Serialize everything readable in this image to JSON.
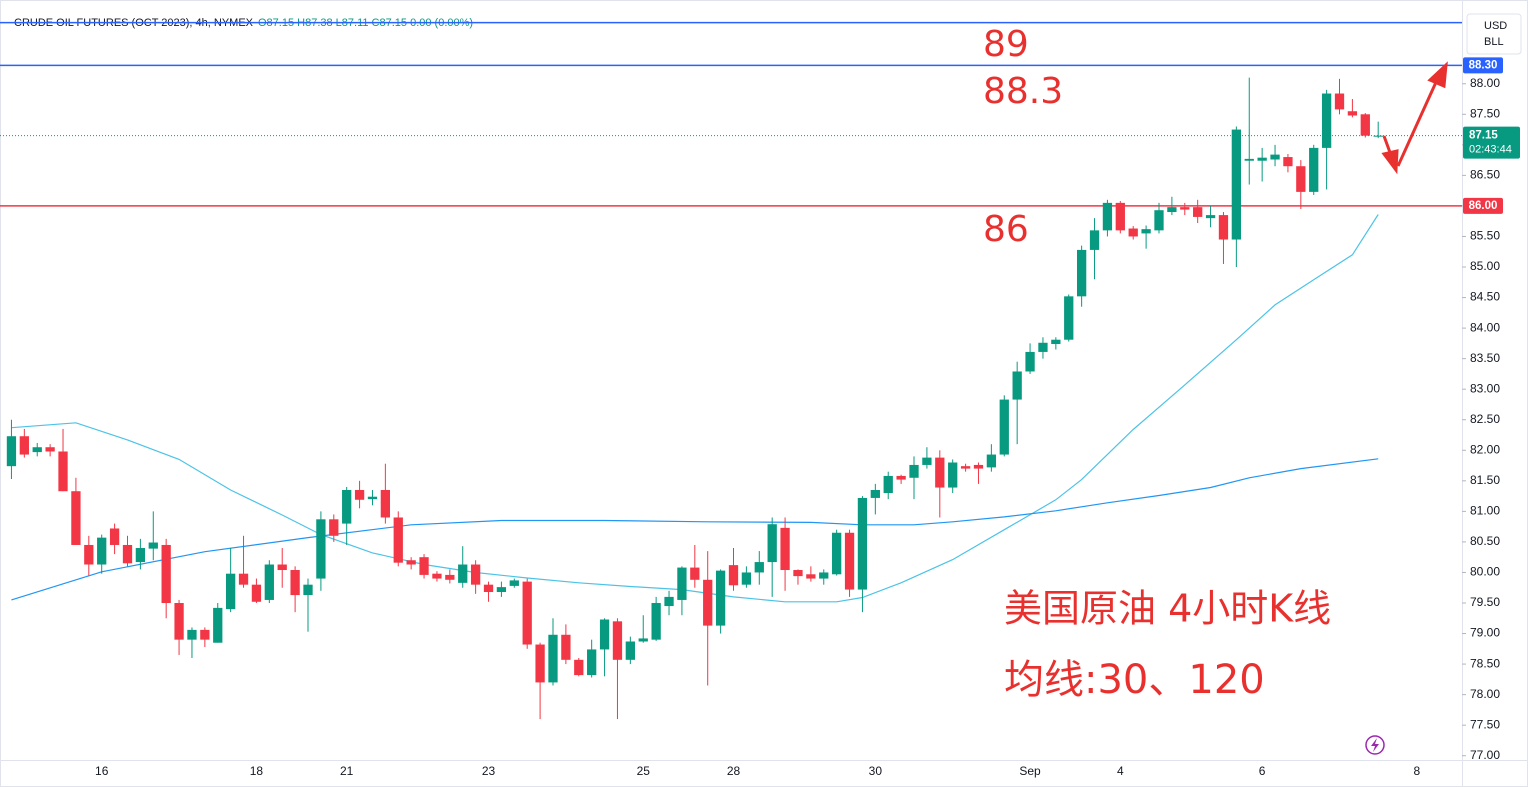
{
  "chart_data": {
    "type": "candlestick",
    "title": "CRUDE OIL FUTURES (OCT 2023), 4h, NYMEX",
    "subtitle": "O87.15 H87.38 L87.11 C87.15 0.00 (0.00%)",
    "currency": [
      "USD",
      "BLL"
    ],
    "up_color": "#089981",
    "down_color": "#f23645",
    "ylim": [
      76.93,
      89.24
    ],
    "yticks": [
      {
        "value": 77,
        "label": "77.00"
      },
      {
        "value": 77.5,
        "label": "77.50"
      },
      {
        "value": 78,
        "label": "78.00"
      },
      {
        "value": 78.5,
        "label": "78.50"
      },
      {
        "value": 79,
        "label": "79.00"
      },
      {
        "value": 79.5,
        "label": "79.50"
      },
      {
        "value": 80,
        "label": "80.00"
      },
      {
        "value": 80.5,
        "label": "80.50"
      },
      {
        "value": 81,
        "label": "81.00"
      },
      {
        "value": 81.5,
        "label": "81.50"
      },
      {
        "value": 82,
        "label": "82.00"
      },
      {
        "value": 82.5,
        "label": "82.50"
      },
      {
        "value": 83,
        "label": "83.00"
      },
      {
        "value": 83.5,
        "label": "83.50"
      },
      {
        "value": 84,
        "label": "84.00"
      },
      {
        "value": 84.5,
        "label": "84.50"
      },
      {
        "value": 85,
        "label": "85.00"
      },
      {
        "value": 85.5,
        "label": "85.50"
      },
      {
        "value": 86,
        "label": "86.00"
      },
      {
        "value": 86.5,
        "label": "86.50"
      },
      {
        "value": 87,
        "label": "87.00"
      },
      {
        "value": 87.5,
        "label": "87.50"
      },
      {
        "value": 88,
        "label": "88.00"
      }
    ],
    "categories": [
      null,
      null,
      null,
      null,
      null,
      null,
      null,
      "16",
      null,
      null,
      null,
      null,
      null,
      null,
      null,
      null,
      null,
      null,
      null,
      "18",
      null,
      null,
      null,
      null,
      null,
      null,
      "21",
      null,
      null,
      null,
      null,
      null,
      null,
      null,
      null,
      null,
      null,
      "23",
      null,
      null,
      null,
      null,
      null,
      null,
      null,
      null,
      null,
      null,
      null,
      "25",
      null,
      null,
      null,
      null,
      null,
      null,
      "28",
      null,
      null,
      null,
      null,
      null,
      null,
      null,
      null,
      null,
      null,
      "30",
      null,
      null,
      null,
      null,
      null,
      null,
      null,
      null,
      null,
      null,
      null,
      "Sep",
      null,
      null,
      null,
      null,
      null,
      null,
      "4",
      null,
      null,
      null,
      null,
      null,
      null,
      null,
      null,
      null,
      null,
      "6",
      null,
      null,
      null,
      null,
      null,
      null,
      null,
      null,
      null,
      null,
      null,
      "8",
      null,
      null,
      null
    ],
    "open": [
      81.74,
      82.23,
      81.97,
      82.05,
      81.98,
      81.33,
      80.45,
      80.13,
      80.72,
      80.45,
      80.17,
      80.39,
      80.45,
      79.5,
      78.9,
      79.06,
      78.85,
      79.4,
      79.98,
      79.8,
      79.55,
      80.13,
      80.04,
      79.63,
      79.9,
      80.87,
      80.8,
      81.35,
      81.2,
      81.35,
      80.9,
      80.2,
      80.25,
      79.98,
      79.96,
      79.83,
      80.13,
      79.8,
      79.68,
      79.78,
      79.85,
      78.82,
      78.2,
      78.98,
      78.57,
      78.32,
      78.74,
      79.2,
      78.57,
      78.87,
      78.9,
      79.45,
      79.55,
      80.08,
      79.88,
      79.13,
      80.12,
      79.8,
      80.0,
      80.17,
      80.73,
      80.04,
      79.97,
      79.9,
      79.97,
      80.65,
      79.72,
      81.22,
      81.3,
      81.58,
      81.55,
      81.76,
      81.88,
      81.39,
      81.74,
      81.76,
      81.72,
      81.93,
      82.83,
      83.29,
      83.61,
      83.74,
      83.81,
      84.52,
      85.28,
      85.6,
      86.05,
      85.63,
      85.55,
      85.6,
      85.9,
      85.98,
      85.98,
      85.8,
      85.85,
      85.45,
      86.74,
      86.74,
      86.76,
      86.8,
      86.65,
      86.23,
      86.95,
      87.84,
      87.55,
      87.5,
      87.15,
      null,
      null,
      null,
      null,
      null,
      null
    ],
    "high": [
      82.5,
      82.35,
      82.12,
      82.1,
      82.35,
      81.55,
      80.6,
      80.62,
      80.8,
      80.6,
      80.55,
      81.0,
      80.55,
      79.55,
      79.1,
      79.1,
      79.5,
      80.4,
      80.6,
      79.9,
      80.2,
      80.4,
      80.1,
      79.9,
      81.0,
      80.95,
      81.4,
      81.5,
      81.35,
      81.78,
      81.0,
      80.25,
      80.3,
      80.02,
      80.05,
      80.43,
      80.2,
      79.85,
      79.85,
      79.9,
      79.9,
      78.85,
      79.25,
      79.15,
      78.6,
      78.9,
      79.25,
      79.25,
      78.95,
      79.3,
      79.6,
      79.7,
      80.1,
      80.45,
      80.35,
      80.05,
      80.4,
      80.1,
      80.35,
      80.9,
      80.9,
      80.05,
      80.1,
      80.05,
      80.7,
      80.7,
      81.25,
      81.45,
      81.65,
      81.6,
      81.9,
      82.05,
      82.0,
      81.85,
      81.78,
      81.8,
      82.1,
      82.9,
      83.45,
      83.75,
      83.85,
      83.85,
      84.55,
      85.35,
      85.8,
      86.1,
      86.08,
      85.67,
      85.68,
      86.05,
      86.15,
      86.05,
      86.1,
      86.0,
      85.9,
      87.3,
      88.1,
      86.95,
      87.0,
      86.85,
      86.75,
      87.0,
      87.9,
      88.08,
      87.75,
      87.52,
      87.38,
      null,
      null,
      null,
      null,
      null,
      null
    ],
    "low": [
      81.53,
      81.88,
      81.9,
      81.9,
      81.33,
      80.45,
      79.95,
      79.98,
      80.3,
      80.1,
      80.05,
      80.2,
      79.25,
      78.65,
      78.6,
      78.78,
      78.85,
      79.35,
      79.75,
      79.5,
      79.5,
      79.75,
      79.35,
      79.03,
      79.7,
      80.5,
      80.45,
      81.05,
      81.1,
      80.8,
      80.1,
      80.05,
      79.9,
      79.85,
      79.82,
      79.75,
      79.65,
      79.52,
      79.6,
      79.75,
      78.75,
      77.6,
      78.15,
      78.5,
      78.3,
      78.28,
      78.3,
      77.6,
      78.5,
      78.85,
      78.88,
      79.3,
      79.3,
      79.75,
      78.15,
      79.0,
      79.7,
      79.75,
      79.8,
      79.6,
      79.7,
      79.8,
      79.85,
      79.8,
      79.95,
      79.6,
      79.35,
      80.95,
      81.2,
      81.45,
      81.2,
      81.7,
      80.9,
      81.3,
      81.65,
      81.45,
      81.65,
      81.9,
      82.1,
      83.25,
      83.5,
      83.65,
      83.78,
      84.35,
      84.8,
      85.5,
      85.55,
      85.45,
      85.3,
      85.55,
      85.85,
      85.85,
      85.72,
      85.65,
      85.05,
      85.0,
      86.35,
      86.4,
      86.65,
      86.55,
      85.95,
      86.18,
      86.27,
      87.5,
      87.45,
      87.12,
      87.11,
      null,
      null,
      null,
      null,
      null,
      null
    ],
    "close": [
      82.23,
      81.93,
      82.05,
      81.98,
      81.33,
      80.45,
      80.13,
      80.57,
      80.45,
      80.15,
      80.4,
      80.49,
      79.5,
      78.9,
      79.06,
      78.9,
      79.42,
      79.98,
      79.8,
      79.52,
      80.13,
      80.04,
      79.63,
      79.8,
      80.87,
      80.6,
      81.35,
      81.19,
      81.24,
      80.9,
      80.16,
      80.13,
      79.96,
      79.9,
      79.88,
      80.13,
      79.8,
      79.68,
      79.76,
      79.87,
      78.82,
      78.2,
      78.98,
      78.57,
      78.32,
      78.74,
      79.23,
      78.57,
      78.87,
      78.92,
      79.5,
      79.6,
      80.08,
      79.88,
      79.13,
      80.03,
      79.79,
      80.0,
      80.17,
      80.79,
      80.04,
      79.94,
      79.9,
      80.0,
      80.65,
      79.72,
      81.22,
      81.35,
      81.58,
      81.52,
      81.76,
      81.88,
      81.39,
      81.8,
      81.7,
      81.7,
      81.93,
      82.83,
      83.29,
      83.61,
      83.76,
      83.81,
      84.52,
      85.28,
      85.6,
      86.05,
      85.6,
      85.5,
      85.62,
      85.93,
      85.98,
      85.94,
      85.82,
      85.85,
      85.45,
      87.25,
      86.77,
      86.79,
      86.84,
      86.65,
      86.23,
      86.95,
      87.84,
      87.58,
      87.48,
      87.15,
      87.15,
      null,
      null,
      null,
      null,
      null,
      null
    ],
    "series": [
      {
        "color": "#4cc3e6",
        "x": [
          0,
          5,
          9,
          13,
          17,
          21,
          24,
          28,
          32,
          36,
          40,
          44,
          48,
          52,
          56,
          60,
          64,
          66,
          69,
          73,
          77,
          81,
          83,
          87,
          91,
          95,
          98,
          101,
          104,
          106
        ],
        "values": [
          82.37,
          82.45,
          82.17,
          81.85,
          81.35,
          80.94,
          80.62,
          80.32,
          80.13,
          80.0,
          79.91,
          79.83,
          79.77,
          79.72,
          79.6,
          79.52,
          79.52,
          79.59,
          79.83,
          80.21,
          80.7,
          81.19,
          81.52,
          82.34,
          83.07,
          83.81,
          84.38,
          84.79,
          85.2,
          85.86
        ]
      },
      {
        "color": "#2196f3",
        "x": [
          0,
          7,
          15,
          23,
          31,
          38,
          46,
          54,
          62,
          66,
          70,
          73,
          77,
          81,
          85,
          89,
          93,
          96,
          100,
          106
        ],
        "values": [
          79.55,
          80.01,
          80.34,
          80.57,
          80.78,
          80.85,
          80.85,
          80.83,
          80.82,
          80.78,
          80.78,
          80.83,
          80.91,
          81.01,
          81.14,
          81.26,
          81.39,
          81.55,
          81.7,
          81.86
        ]
      }
    ],
    "hlines": [
      {
        "value": 89,
        "color": "#2962ff"
      },
      {
        "value": 88.3,
        "label": "88.30",
        "color": "#2962ff"
      },
      {
        "value": 86,
        "label": "86.00",
        "color": "#f23645"
      }
    ],
    "last": {
      "value": 87.15,
      "label": "87.15",
      "countdown": "02:43:44",
      "color": "#089981"
    },
    "annotations": [
      "89",
      "88.3",
      "86",
      "美国原油 4小时K线",
      "均线:30、120"
    ]
  }
}
